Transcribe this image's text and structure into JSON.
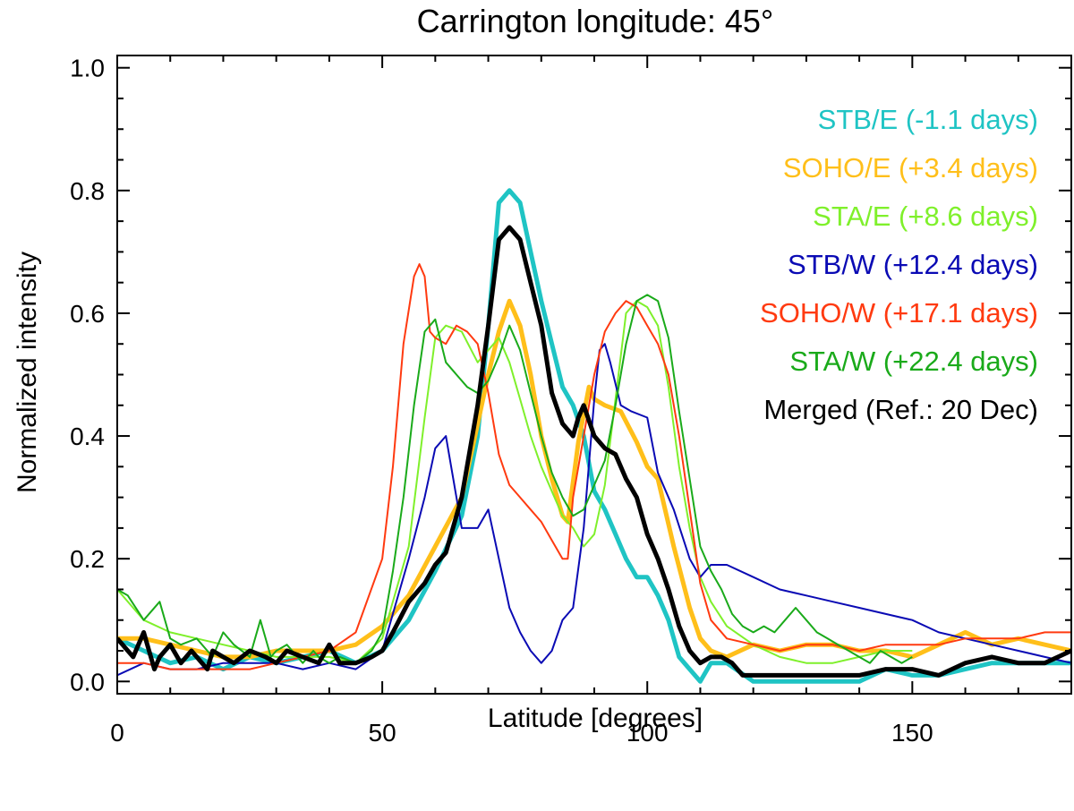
{
  "chart_data": {
    "type": "line",
    "title": "Carrington longitude: 45°",
    "xlabel": "Latitude [degrees]",
    "ylabel": "Normalized intensity",
    "xlim": [
      0,
      180
    ],
    "ylim": [
      -0.02,
      1.02
    ],
    "xticks": [
      0,
      50,
      100,
      150
    ],
    "xtick_labels": [
      "0",
      "50",
      "100",
      "150"
    ],
    "yticks": [
      0.0,
      0.2,
      0.4,
      0.6,
      0.8,
      1.0
    ],
    "ytick_labels": [
      "0.0",
      "0.2",
      "0.4",
      "0.6",
      "0.8",
      "1.0"
    ],
    "legend_position": "top-right",
    "series": [
      {
        "name": "STB/E (-1.1 days)",
        "color": "#1fc4c4",
        "width": "thick",
        "x": [
          0,
          5,
          10,
          15,
          20,
          25,
          30,
          35,
          40,
          45,
          50,
          55,
          60,
          65,
          68,
          70,
          72,
          74,
          76,
          78,
          80,
          82,
          84,
          86,
          88,
          90,
          92,
          94,
          96,
          98,
          100,
          102,
          104,
          106,
          108,
          110,
          112,
          115,
          120,
          125,
          130,
          140,
          145,
          150,
          155,
          160,
          165,
          170,
          175,
          180
        ],
        "y": [
          0.07,
          0.05,
          0.03,
          0.04,
          0.02,
          0.04,
          0.03,
          0.04,
          0.05,
          0.03,
          0.05,
          0.1,
          0.18,
          0.27,
          0.4,
          0.58,
          0.78,
          0.8,
          0.78,
          0.7,
          0.62,
          0.55,
          0.48,
          0.45,
          0.4,
          0.31,
          0.28,
          0.24,
          0.2,
          0.17,
          0.17,
          0.14,
          0.1,
          0.04,
          0.02,
          0.0,
          0.03,
          0.03,
          0.0,
          0.0,
          0.0,
          0.0,
          0.02,
          0.01,
          0.01,
          0.02,
          0.03,
          0.03,
          0.03,
          0.03
        ]
      },
      {
        "name": "SOHO/E (+3.4 days)",
        "color": "#ffbf1a",
        "width": "thick",
        "x": [
          0,
          5,
          10,
          15,
          20,
          25,
          30,
          35,
          40,
          45,
          50,
          55,
          60,
          65,
          70,
          72,
          74,
          76,
          78,
          80,
          82,
          84,
          85,
          87,
          89,
          90,
          92,
          95,
          98,
          100,
          102,
          105,
          108,
          110,
          112,
          115,
          120,
          125,
          130,
          135,
          140,
          145,
          150,
          155,
          160,
          165,
          170,
          175,
          180
        ],
        "y": [
          0.07,
          0.07,
          0.06,
          0.05,
          0.04,
          0.04,
          0.05,
          0.05,
          0.05,
          0.06,
          0.09,
          0.14,
          0.22,
          0.3,
          0.5,
          0.57,
          0.62,
          0.58,
          0.5,
          0.4,
          0.33,
          0.27,
          0.26,
          0.39,
          0.48,
          0.46,
          0.45,
          0.44,
          0.39,
          0.35,
          0.33,
          0.22,
          0.12,
          0.07,
          0.05,
          0.04,
          0.06,
          0.05,
          0.06,
          0.06,
          0.05,
          0.05,
          0.04,
          0.06,
          0.08,
          0.06,
          0.07,
          0.06,
          0.05
        ]
      },
      {
        "name": "STA/E (+8.6 days)",
        "color": "#7ff02b",
        "width": "thin",
        "x": [
          0,
          5,
          10,
          15,
          20,
          25,
          30,
          35,
          40,
          45,
          50,
          55,
          58,
          60,
          62,
          65,
          68,
          70,
          72,
          74,
          76,
          78,
          80,
          82,
          84,
          86,
          88,
          90,
          92,
          94,
          96,
          98,
          100,
          102,
          104,
          106,
          108,
          110,
          112,
          115,
          120,
          125,
          130,
          135,
          140,
          145,
          150
        ],
        "y": [
          0.15,
          0.1,
          0.08,
          0.07,
          0.06,
          0.05,
          0.04,
          0.04,
          0.04,
          0.03,
          0.07,
          0.22,
          0.43,
          0.56,
          0.58,
          0.57,
          0.52,
          0.54,
          0.56,
          0.52,
          0.46,
          0.4,
          0.35,
          0.31,
          0.27,
          0.25,
          0.22,
          0.24,
          0.32,
          0.46,
          0.6,
          0.62,
          0.61,
          0.58,
          0.48,
          0.35,
          0.25,
          0.17,
          0.13,
          0.09,
          0.06,
          0.04,
          0.03,
          0.03,
          0.04,
          0.05,
          0.05
        ]
      },
      {
        "name": "STB/W (+12.4 days)",
        "color": "#0a0ab4",
        "width": "thin",
        "x": [
          0,
          5,
          10,
          15,
          20,
          25,
          30,
          35,
          40,
          45,
          50,
          55,
          58,
          60,
          62,
          65,
          68,
          70,
          72,
          74,
          76,
          78,
          80,
          82,
          84,
          86,
          88,
          90,
          91,
          92,
          93,
          95,
          97,
          100,
          102,
          105,
          108,
          110,
          112,
          115,
          120,
          125,
          130,
          135,
          140,
          145,
          150,
          155,
          160,
          165,
          170,
          175,
          180
        ],
        "y": [
          0.01,
          0.03,
          0.02,
          0.02,
          0.03,
          0.03,
          0.03,
          0.02,
          0.03,
          0.02,
          0.05,
          0.2,
          0.3,
          0.38,
          0.4,
          0.25,
          0.25,
          0.28,
          0.2,
          0.12,
          0.08,
          0.05,
          0.03,
          0.05,
          0.1,
          0.12,
          0.25,
          0.46,
          0.54,
          0.55,
          0.52,
          0.45,
          0.44,
          0.43,
          0.34,
          0.28,
          0.2,
          0.17,
          0.19,
          0.19,
          0.17,
          0.15,
          0.14,
          0.13,
          0.12,
          0.11,
          0.1,
          0.08,
          0.07,
          0.06,
          0.05,
          0.04,
          0.03
        ]
      },
      {
        "name": "SOHO/W (+17.1 days)",
        "color": "#ff3a10",
        "width": "thin",
        "x": [
          0,
          5,
          10,
          15,
          20,
          25,
          30,
          35,
          40,
          45,
          50,
          52,
          54,
          56,
          57,
          58,
          59,
          60,
          62,
          64,
          66,
          68,
          70,
          72,
          74,
          76,
          78,
          80,
          82,
          84,
          85,
          86,
          88,
          90,
          92,
          94,
          96,
          98,
          100,
          102,
          104,
          106,
          108,
          110,
          112,
          115,
          120,
          125,
          130,
          135,
          140,
          145,
          150,
          155,
          160,
          165,
          170,
          175,
          180
        ],
        "y": [
          0.03,
          0.03,
          0.02,
          0.02,
          0.02,
          0.02,
          0.03,
          0.04,
          0.05,
          0.08,
          0.2,
          0.35,
          0.55,
          0.66,
          0.68,
          0.66,
          0.57,
          0.56,
          0.55,
          0.58,
          0.57,
          0.55,
          0.47,
          0.37,
          0.32,
          0.3,
          0.28,
          0.26,
          0.23,
          0.2,
          0.2,
          0.3,
          0.4,
          0.5,
          0.57,
          0.6,
          0.62,
          0.61,
          0.58,
          0.55,
          0.5,
          0.4,
          0.28,
          0.16,
          0.1,
          0.07,
          0.06,
          0.05,
          0.06,
          0.06,
          0.05,
          0.06,
          0.06,
          0.06,
          0.07,
          0.07,
          0.07,
          0.08,
          0.08
        ]
      },
      {
        "name": "STA/W (+22.4 days)",
        "color": "#1aaa1a",
        "width": "thin",
        "x": [
          0,
          2,
          5,
          8,
          10,
          12,
          15,
          18,
          20,
          22,
          25,
          27,
          29,
          30,
          32,
          35,
          37,
          38,
          40,
          42,
          45,
          48,
          50,
          52,
          54,
          56,
          58,
          60,
          62,
          64,
          66,
          68,
          70,
          72,
          74,
          76,
          78,
          80,
          82,
          84,
          86,
          88,
          90,
          92,
          94,
          96,
          98,
          100,
          102,
          104,
          106,
          108,
          110,
          112,
          114,
          116,
          118,
          120,
          122,
          124,
          126,
          128,
          130,
          132,
          134,
          136,
          138,
          140,
          142,
          144,
          146,
          148,
          150
        ],
        "y": [
          0.15,
          0.14,
          0.1,
          0.13,
          0.07,
          0.06,
          0.07,
          0.04,
          0.08,
          0.06,
          0.04,
          0.1,
          0.04,
          0.05,
          0.06,
          0.03,
          0.05,
          0.04,
          0.03,
          0.04,
          0.03,
          0.05,
          0.08,
          0.18,
          0.3,
          0.45,
          0.57,
          0.59,
          0.52,
          0.5,
          0.48,
          0.47,
          0.49,
          0.53,
          0.58,
          0.54,
          0.47,
          0.4,
          0.34,
          0.3,
          0.27,
          0.28,
          0.32,
          0.36,
          0.45,
          0.55,
          0.62,
          0.63,
          0.62,
          0.56,
          0.44,
          0.33,
          0.22,
          0.18,
          0.15,
          0.11,
          0.09,
          0.08,
          0.09,
          0.08,
          0.1,
          0.12,
          0.1,
          0.08,
          0.07,
          0.06,
          0.05,
          0.04,
          0.03,
          0.05,
          0.04,
          0.03,
          0.04
        ]
      },
      {
        "name": "Merged (Ref.: 20 Dec)",
        "color": "#000000",
        "width": "thick",
        "x": [
          0,
          2,
          3,
          5,
          7,
          8,
          10,
          12,
          14,
          15,
          17,
          18,
          20,
          22,
          25,
          28,
          30,
          32,
          35,
          38,
          40,
          42,
          45,
          48,
          50,
          52,
          55,
          58,
          60,
          62,
          65,
          68,
          70,
          72,
          74,
          76,
          78,
          80,
          82,
          84,
          86,
          87,
          88,
          90,
          92,
          94,
          96,
          98,
          100,
          102,
          104,
          106,
          108,
          110,
          112,
          114,
          116,
          118,
          120,
          125,
          130,
          135,
          140,
          145,
          150,
          155,
          160,
          165,
          170,
          175,
          180
        ],
        "y": [
          0.07,
          0.05,
          0.04,
          0.08,
          0.02,
          0.04,
          0.06,
          0.03,
          0.05,
          0.04,
          0.02,
          0.05,
          0.04,
          0.03,
          0.05,
          0.04,
          0.03,
          0.05,
          0.04,
          0.03,
          0.06,
          0.03,
          0.03,
          0.04,
          0.05,
          0.08,
          0.13,
          0.16,
          0.19,
          0.21,
          0.3,
          0.45,
          0.58,
          0.72,
          0.74,
          0.72,
          0.65,
          0.58,
          0.47,
          0.42,
          0.4,
          0.43,
          0.45,
          0.4,
          0.38,
          0.37,
          0.33,
          0.3,
          0.24,
          0.2,
          0.15,
          0.09,
          0.05,
          0.03,
          0.04,
          0.04,
          0.03,
          0.01,
          0.01,
          0.01,
          0.01,
          0.01,
          0.01,
          0.02,
          0.02,
          0.01,
          0.03,
          0.04,
          0.03,
          0.03,
          0.05
        ]
      }
    ]
  }
}
